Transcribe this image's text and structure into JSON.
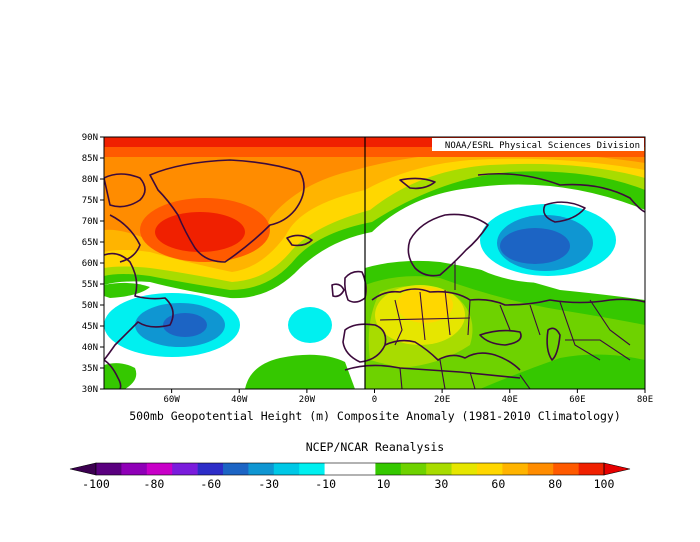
{
  "map": {
    "credit": "NOAA/ESRL Physical Sciences Division",
    "lat_labels": [
      "90N",
      "85N",
      "80N",
      "75N",
      "70N",
      "65N",
      "60N",
      "55N",
      "50N",
      "45N",
      "40N",
      "35N",
      "30N"
    ],
    "lon_labels": [
      "60W",
      "40W",
      "20W",
      "0",
      "20E",
      "40E",
      "60E",
      "80E"
    ],
    "lat_range": [
      30,
      90
    ],
    "lon_range": [
      -80,
      80
    ],
    "field_title": "500mb Geopotential Height (m) Composite Anomaly (1981-2010 Climatology)",
    "source": "NCEP/NCAR Reanalysis",
    "anomaly_centers": [
      {
        "region": "Greenland",
        "lat": 68,
        "lon": -43,
        "anomaly_m": 95
      },
      {
        "region": "North Pole",
        "lat": 88,
        "lon": 0,
        "anomaly_m": 100
      },
      {
        "region": "Western Russia",
        "lat": 63,
        "lon": 50,
        "anomaly_m": -40
      },
      {
        "region": "Newfoundland",
        "lat": 46,
        "lon": -52,
        "anomaly_m": -40
      },
      {
        "region": "Central Europe",
        "lat": 49,
        "lon": 15,
        "anomaly_m": 55
      }
    ]
  },
  "colorbar": {
    "tick_labels": [
      "-100",
      "-80",
      "-60",
      "-30",
      "-10",
      "10",
      "30",
      "60",
      "80",
      "100"
    ],
    "colors": [
      "#5a007f",
      "#8f00b7",
      "#c800c8",
      "#7a1cdc",
      "#2d2dc8",
      "#1c64c4",
      "#0f96d2",
      "#00c8e6",
      "#00f0f0",
      "#ffffff",
      "#ffffff",
      "#35c800",
      "#6ed200",
      "#a8dc00",
      "#e6e600",
      "#ffd700",
      "#ffb400",
      "#ff8c00",
      "#ff5a00",
      "#f02000"
    ],
    "under_color": "#3c0050",
    "over_color": "#e60000"
  }
}
